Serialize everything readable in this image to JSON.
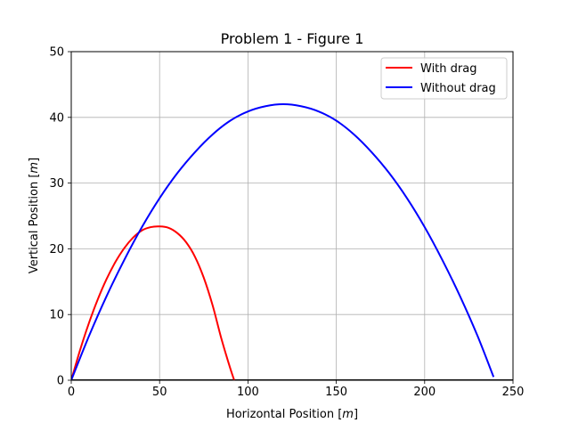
{
  "chart_data": {
    "type": "line",
    "title": "Problem 1 - Figure 1",
    "xlabel": "Horizontal Position [m]",
    "ylabel": "Vertical Position [m]",
    "xlim": [
      0,
      250
    ],
    "ylim": [
      0,
      50
    ],
    "xticks": [
      0,
      50,
      100,
      150,
      200,
      250
    ],
    "yticks": [
      0,
      10,
      20,
      30,
      40,
      50
    ],
    "grid": true,
    "legend_position": "top-right",
    "series": [
      {
        "name": "With drag",
        "color": "#ff0000",
        "x": [
          0,
          5,
          10,
          15,
          20,
          25,
          30,
          35,
          40,
          45,
          50,
          55,
          60,
          65,
          70,
          75,
          80,
          85,
          90,
          93
        ],
        "y": [
          0,
          4.6,
          8.7,
          12.3,
          15.4,
          18.0,
          20.1,
          21.7,
          22.8,
          23.3,
          23.4,
          23.2,
          22.4,
          21.0,
          18.8,
          15.6,
          11.4,
          6.3,
          1.8,
          -0.6
        ]
      },
      {
        "name": "Without drag",
        "color": "#0000ff",
        "x": [
          0,
          10,
          20,
          30,
          40,
          50,
          60,
          70,
          80,
          90,
          100,
          110,
          120,
          130,
          140,
          150,
          160,
          170,
          180,
          190,
          200,
          210,
          220,
          230,
          239
        ],
        "y": [
          0,
          6.7,
          12.8,
          18.3,
          23.3,
          27.7,
          31.5,
          34.7,
          37.4,
          39.5,
          40.9,
          41.7,
          42.0,
          41.7,
          40.9,
          39.5,
          37.4,
          34.7,
          31.5,
          27.7,
          23.3,
          18.3,
          12.8,
          6.7,
          0.5
        ]
      }
    ],
    "baseline": {
      "color": "#000000",
      "x": [
        0,
        250
      ],
      "y": [
        0,
        0
      ]
    }
  }
}
